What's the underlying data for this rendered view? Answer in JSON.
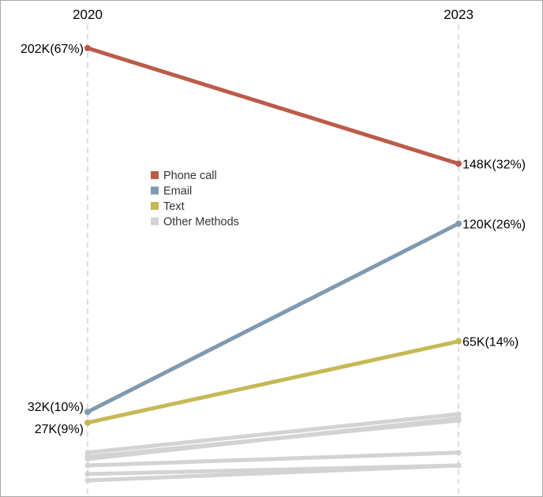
{
  "chart_data": {
    "type": "line",
    "x": [
      "2020",
      "2023"
    ],
    "series": [
      {
        "name": "Phone call",
        "color": "#bc5b4a",
        "values": [
          202,
          148
        ],
        "labels": [
          "202K(67%)",
          "148K(32%)"
        ]
      },
      {
        "name": "Email",
        "color": "#7f9ab0",
        "values": [
          32,
          120
        ],
        "labels": [
          "32K(10%)",
          "120K(26%)"
        ]
      },
      {
        "name": "Text",
        "color": "#c6b955",
        "values": [
          27,
          65
        ],
        "labels": [
          "27K(9%)",
          "65K(14%)"
        ]
      },
      {
        "name": "Other Methods",
        "color": "#d3d3d3",
        "lines": [
          {
            "values": [
              13,
              31
            ]
          },
          {
            "values": [
              11,
              28
            ]
          },
          {
            "values": [
              10,
              29
            ]
          },
          {
            "values": [
              7,
              13
            ]
          },
          {
            "values": [
              3,
              7
            ]
          },
          {
            "values": [
              0,
              7
            ]
          }
        ]
      }
    ],
    "ylim": [
      0,
      202
    ],
    "grid": false,
    "legend": "center-left"
  }
}
